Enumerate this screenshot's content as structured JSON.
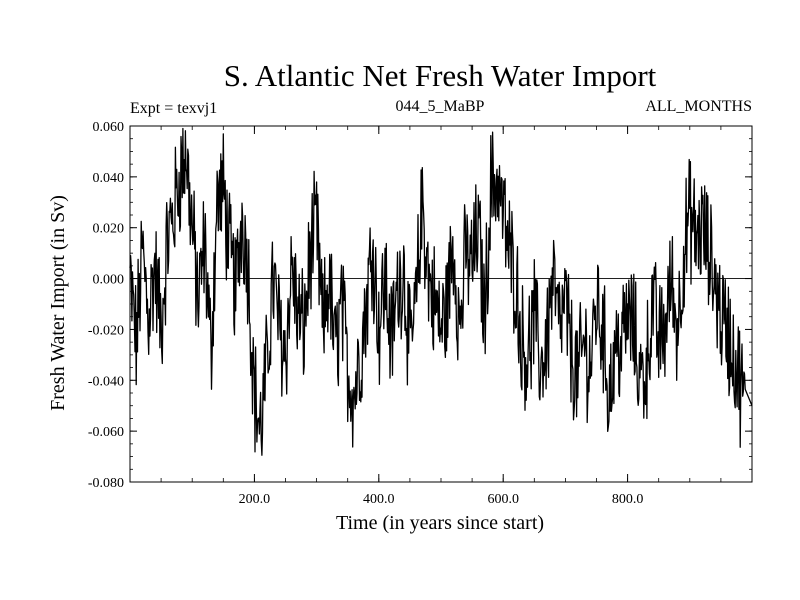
{
  "chart_data": {
    "type": "line",
    "title": "S. Atlantic Net Fresh Water Import",
    "subtitle_left": "Expt = texvj1",
    "subtitle_center": "044_5_MaBP",
    "subtitle_right": "ALL_MONTHS",
    "xlabel": "Time (in years since start)",
    "ylabel": "Fresh Water Import (in Sv)",
    "xlim": [
      0,
      1000
    ],
    "ylim": [
      -0.08,
      0.06
    ],
    "x_ticks": [
      200,
      400,
      600,
      800
    ],
    "x_tick_labels": [
      "200.0",
      "400.0",
      "600.0",
      "800.0"
    ],
    "y_ticks": [
      -0.08,
      -0.06,
      -0.04,
      -0.02,
      0.0,
      0.02,
      0.04,
      0.06
    ],
    "y_tick_labels": [
      "-0.080",
      "-0.060",
      "-0.040",
      "-0.020",
      "0.000",
      "0.020",
      "0.040",
      "0.060"
    ],
    "zero_line": true,
    "line_color": "#000000",
    "series": [
      {
        "name": "Net Fresh Water Import",
        "x_step": 10,
        "values": [
          0.0,
          -0.025,
          0.01,
          -0.015,
          0.005,
          -0.02,
          0.015,
          0.025,
          0.04,
          0.05,
          0.02,
          -0.01,
          0.015,
          -0.03,
          0.03,
          0.035,
          0.01,
          -0.005,
          0.025,
          0.005,
          -0.045,
          -0.06,
          -0.035,
          0.0,
          -0.02,
          -0.03,
          0.005,
          -0.015,
          -0.02,
          0.01,
          0.02,
          -0.02,
          0.0,
          -0.03,
          -0.01,
          -0.035,
          -0.045,
          -0.03,
          -0.01,
          0.015,
          -0.02,
          0.0,
          -0.025,
          -0.005,
          0.005,
          -0.03,
          -0.01,
          0.03,
          0.0,
          -0.01,
          -0.02,
          -0.01,
          0.015,
          -0.02,
          0.01,
          0.005,
          0.02,
          -0.015,
          0.035,
          0.04,
          0.025,
          0.01,
          0.0,
          -0.025,
          -0.03,
          -0.015,
          -0.035,
          -0.025,
          0.0,
          -0.02,
          -0.01,
          -0.03,
          -0.04,
          -0.025,
          -0.035,
          -0.01,
          -0.02,
          -0.045,
          -0.03,
          -0.025,
          -0.015,
          -0.02,
          -0.04,
          -0.035,
          -0.01,
          -0.025,
          -0.02,
          0.0,
          -0.02,
          0.01,
          0.025,
          0.015,
          0.02,
          0.01,
          0.0,
          -0.015,
          -0.02,
          -0.03,
          -0.04,
          -0.05
        ]
      }
    ]
  }
}
